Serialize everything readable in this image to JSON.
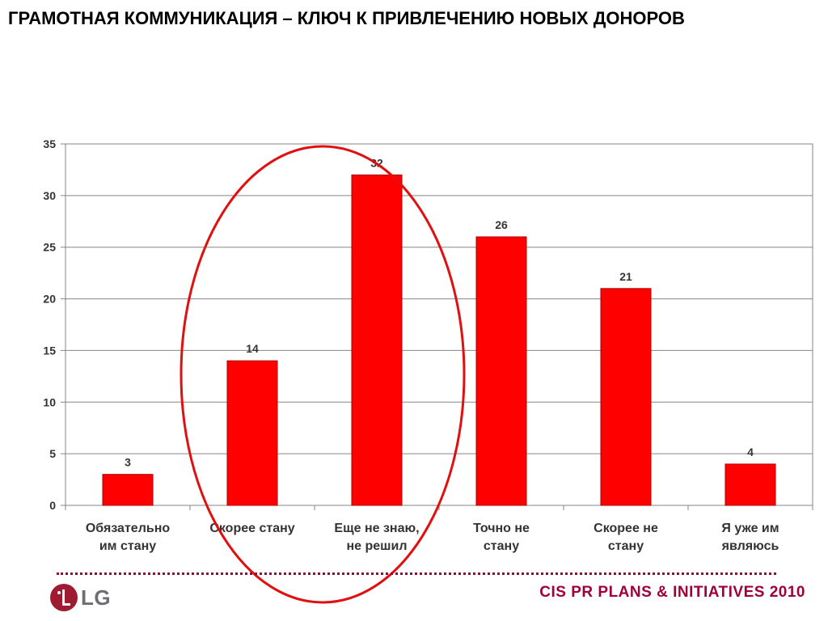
{
  "slide": {
    "title": "ГРАМОТНАЯ КОММУНИКАЦИЯ – КЛЮЧ К ПРИВЛЕЧЕНИЮ НОВЫХ ДОНОРОВ"
  },
  "chart_data": {
    "type": "bar",
    "categories": [
      [
        "Обязательно",
        "им стану"
      ],
      [
        "Скорее  стану"
      ],
      [
        "Еще не знаю,",
        "не решил"
      ],
      [
        "Точно не",
        "стану"
      ],
      [
        "Скорее не",
        "стану"
      ],
      [
        "Я уже им",
        "являюсь"
      ]
    ],
    "values": [
      3,
      14,
      32,
      26,
      21,
      4
    ],
    "ylim": [
      0,
      35
    ],
    "yticks": [
      0,
      5,
      10,
      15,
      20,
      25,
      30,
      35
    ],
    "grid": true,
    "bar_color": "#ff0000",
    "highlight": {
      "shape": "ellipse",
      "color": "#e01010",
      "categories": [
        1,
        2
      ]
    }
  },
  "footer": {
    "brand": "LG",
    "text": "CIS PR PLANS & INITIATIVES 2010"
  }
}
